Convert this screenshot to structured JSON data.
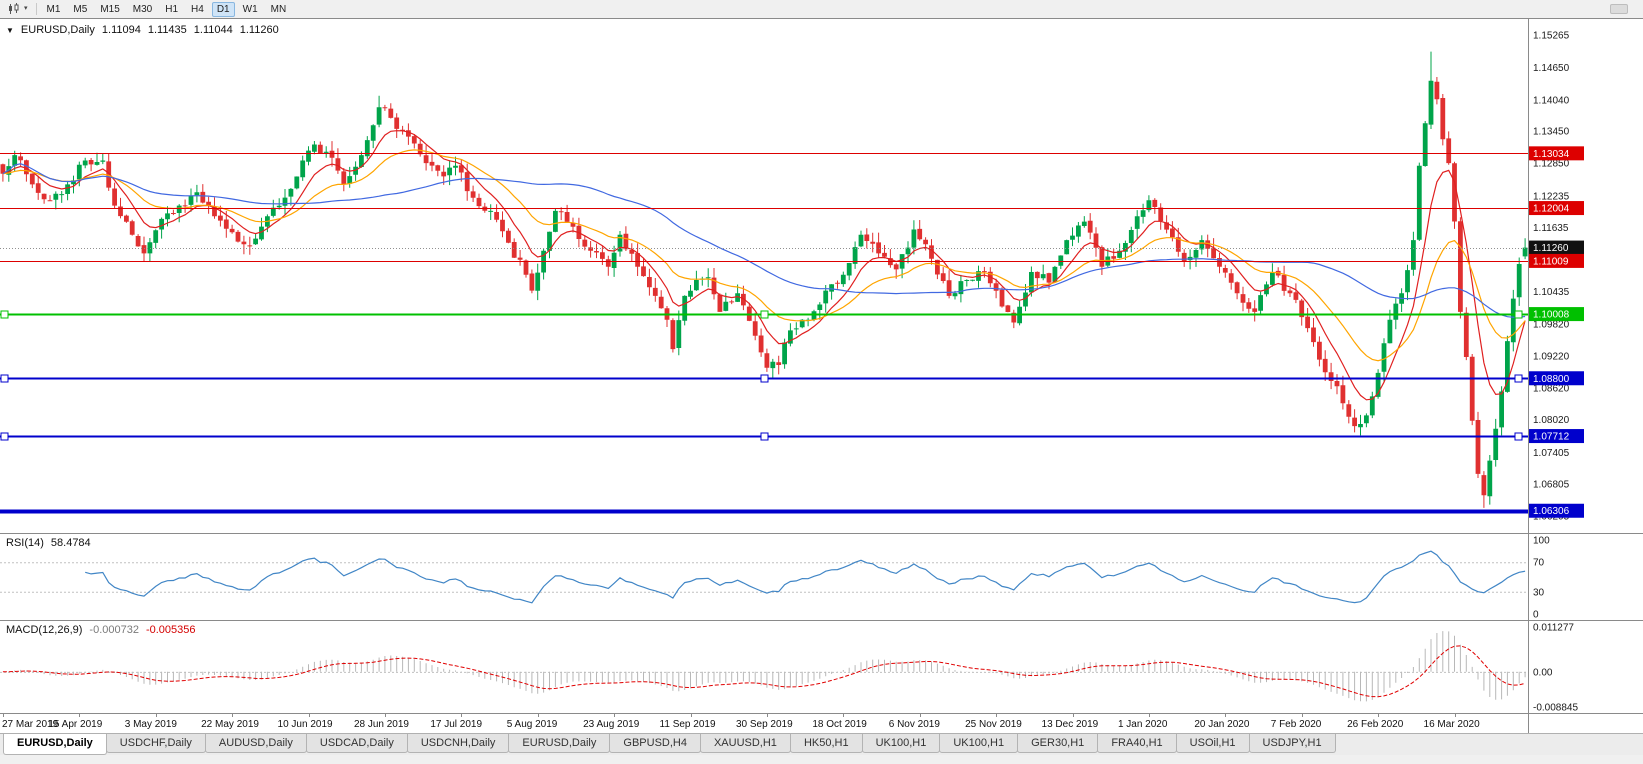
{
  "toolbar": {
    "timeframes": [
      "M1",
      "M5",
      "M15",
      "M30",
      "H1",
      "H4",
      "D1",
      "W1",
      "MN"
    ],
    "active_timeframe": "D1"
  },
  "header": {
    "symbol_period": "EURUSD,Daily",
    "open": "1.11094",
    "high": "1.11435",
    "low": "1.11044",
    "close": "1.11260"
  },
  "rsi": {
    "name": "RSI(14)",
    "value": "58.4784",
    "period": 14,
    "line_color": "#4186c6",
    "axis_labels": [
      "100",
      "70",
      "30",
      "0"
    ],
    "dashed_levels": [
      70,
      30
    ],
    "scale_min": 0,
    "scale_max": 100
  },
  "macd": {
    "name": "MACD(12,26,9)",
    "main_value": "-0.000732",
    "signal_value": "-0.005356",
    "fast": 12,
    "slow": 26,
    "signal": 9,
    "hist_color": "#b8b8b8",
    "signal_color": "#e00000",
    "axis_labels": [
      "0.011277",
      "0.00",
      "-0.008845"
    ],
    "scale_min": -0.008845,
    "scale_max": 0.011277
  },
  "tabs": {
    "active_index": 0,
    "items": [
      "EURUSD,Daily",
      "USDCHF,Daily",
      "AUDUSD,Daily",
      "USDCAD,Daily",
      "USDCNH,Daily",
      "EURUSD,Daily",
      "GBPUSD,H4",
      "XAUUSD,H1",
      "HK50,H1",
      "UK100,H1",
      "UK100,H1",
      "GER30,H1",
      "FRA40,H1",
      "USOil,H1",
      "USDJPY,H1"
    ]
  },
  "chart_data": {
    "type": "candlestick",
    "symbol": "EURUSD",
    "timeframe": "Daily",
    "num_candles": 260,
    "candles_per_label": 13,
    "seed": 20200327,
    "noise": 0.0022,
    "price_min": 1.06,
    "price_max": 1.1545,
    "up_color": "#00a44a",
    "down_color": "#e03030",
    "grid": false,
    "x_labels": [
      "27 Mar 2019",
      "15 Apr 2019",
      "3 May 2019",
      "22 May 2019",
      "10 Jun 2019",
      "28 Jun 2019",
      "17 Jul 2019",
      "5 Aug 2019",
      "23 Aug 2019",
      "11 Sep 2019",
      "30 Sep 2019",
      "18 Oct 2019",
      "6 Nov 2019",
      "25 Nov 2019",
      "13 Dec 2019",
      "1 Jan 2020",
      "20 Jan 2020",
      "7 Feb 2020",
      "26 Feb 2020",
      "16 Mar 2020"
    ],
    "y_axis_labels": [
      "1.15265",
      "1.14650",
      "1.14040",
      "1.13450",
      "1.12850",
      "1.12235",
      "1.11635",
      "1.10435",
      "1.09820",
      "1.09220",
      "1.08620",
      "1.08020",
      "1.07405",
      "1.06805",
      "1.06205"
    ],
    "close_anchors": [
      [
        0,
        1.1265
      ],
      [
        2,
        1.13
      ],
      [
        5,
        1.1245
      ],
      [
        8,
        1.1215
      ],
      [
        11,
        1.1245
      ],
      [
        14,
        1.129
      ],
      [
        17,
        1.129
      ],
      [
        19,
        1.1205
      ],
      [
        22,
        1.115
      ],
      [
        24,
        1.1115
      ],
      [
        27,
        1.118
      ],
      [
        30,
        1.1205
      ],
      [
        33,
        1.123
      ],
      [
        36,
        1.1185
      ],
      [
        39,
        1.1155
      ],
      [
        42,
        1.113
      ],
      [
        45,
        1.1185
      ],
      [
        48,
        1.122
      ],
      [
        51,
        1.129
      ],
      [
        53,
        1.132
      ],
      [
        56,
        1.1295
      ],
      [
        58,
        1.1245
      ],
      [
        61,
        1.13
      ],
      [
        64,
        1.139
      ],
      [
        66,
        1.137
      ],
      [
        69,
        1.1335
      ],
      [
        72,
        1.1285
      ],
      [
        75,
        1.126
      ],
      [
        77,
        1.128
      ],
      [
        80,
        1.122
      ],
      [
        83,
        1.1195
      ],
      [
        86,
        1.1135
      ],
      [
        89,
        1.1075
      ],
      [
        90,
        1.1045
      ],
      [
        92,
        1.112
      ],
      [
        94,
        1.1195
      ],
      [
        97,
        1.1165
      ],
      [
        100,
        1.112
      ],
      [
        103,
        1.109
      ],
      [
        105,
        1.115
      ],
      [
        108,
        1.109
      ],
      [
        111,
        1.1035
      ],
      [
        113,
        1.099
      ],
      [
        114,
        1.0935
      ],
      [
        116,
        1.1035
      ],
      [
        118,
        1.1065
      ],
      [
        120,
        1.107
      ],
      [
        122,
        1.1005
      ],
      [
        125,
        1.104
      ],
      [
        128,
        1.096
      ],
      [
        130,
        1.09
      ],
      [
        132,
        1.0905
      ],
      [
        134,
        1.097
      ],
      [
        137,
        1.099
      ],
      [
        140,
        1.1045
      ],
      [
        143,
        1.1075
      ],
      [
        146,
        1.115
      ],
      [
        149,
        1.1115
      ],
      [
        152,
        1.1085
      ],
      [
        155,
        1.116
      ],
      [
        158,
        1.1105
      ],
      [
        161,
        1.1035
      ],
      [
        164,
        1.1065
      ],
      [
        167,
        1.108
      ],
      [
        170,
        1.1015
      ],
      [
        172,
        1.0985
      ],
      [
        175,
        1.108
      ],
      [
        178,
        1.106
      ],
      [
        181,
        1.114
      ],
      [
        184,
        1.1175
      ],
      [
        187,
        1.109
      ],
      [
        190,
        1.112
      ],
      [
        193,
        1.1185
      ],
      [
        195,
        1.1215
      ],
      [
        198,
        1.116
      ],
      [
        201,
        1.11
      ],
      [
        204,
        1.114
      ],
      [
        207,
        1.109
      ],
      [
        210,
        1.104
      ],
      [
        213,
        1.1005
      ],
      [
        216,
        1.108
      ],
      [
        219,
        1.104
      ],
      [
        221,
        1.0995
      ],
      [
        224,
        1.0915
      ],
      [
        227,
        1.0865
      ],
      [
        230,
        1.079
      ],
      [
        232,
        1.081
      ],
      [
        234,
        1.089
      ],
      [
        236,
        1.099
      ],
      [
        238,
        1.104
      ],
      [
        240,
        1.114
      ],
      [
        241,
        1.128
      ],
      [
        242,
        1.136
      ],
      [
        243,
        1.144
      ],
      [
        244,
        1.1405
      ],
      [
        245,
        1.133
      ],
      [
        246,
        1.1285
      ],
      [
        247,
        1.1175
      ],
      [
        248,
        1.1005
      ],
      [
        249,
        1.092
      ],
      [
        250,
        1.08
      ],
      [
        251,
        1.07
      ],
      [
        252,
        1.066
      ],
      [
        253,
        1.0725
      ],
      [
        254,
        1.0785
      ],
      [
        255,
        1.0855
      ],
      [
        256,
        1.095
      ],
      [
        257,
        1.103
      ],
      [
        258,
        1.1095
      ],
      [
        259,
        1.1126
      ]
    ],
    "wick_overrides": [
      {
        "i": 64,
        "h": 1.1412
      },
      {
        "i": 131,
        "l": 1.0879
      },
      {
        "i": 230,
        "l": 1.0778
      },
      {
        "i": 243,
        "h": 1.1495
      },
      {
        "i": 252,
        "l": 1.0636
      }
    ],
    "last_candle": {
      "o": 1.11094,
      "h": 1.11435,
      "l": 1.11044,
      "c": 1.1126
    },
    "moving_averages": [
      {
        "period": 8,
        "type": "ema",
        "color": "#e02020"
      },
      {
        "period": 21,
        "type": "ema",
        "color": "#ffa500"
      },
      {
        "period": 50,
        "type": "sma",
        "color": "#4169e1"
      }
    ],
    "levels": [
      {
        "price": 1.13034,
        "label": "1.13034",
        "color": "#dd0000",
        "width": 1
      },
      {
        "price": 1.12004,
        "label": "1.12004",
        "color": "#dd0000",
        "width": 1
      },
      {
        "price": 1.1126,
        "label": "1.11260",
        "color": "#909090",
        "width": 1,
        "style": "dotted",
        "badge": "#111111"
      },
      {
        "price": 1.11009,
        "label": "1.11009",
        "color": "#dd0000",
        "width": 1
      },
      {
        "price": 1.10008,
        "label": "1.10008",
        "color": "#00c000",
        "width": 2,
        "handles": true
      },
      {
        "price": 1.088,
        "label": "1.08800",
        "color": "#0000cc",
        "width": 2,
        "handles": true
      },
      {
        "price": 1.07712,
        "label": "1.07712",
        "color": "#0000cc",
        "width": 2,
        "handles": true
      },
      {
        "price": 1.06306,
        "label": "1.06306",
        "color": "#0000cc",
        "width": 4
      }
    ]
  }
}
